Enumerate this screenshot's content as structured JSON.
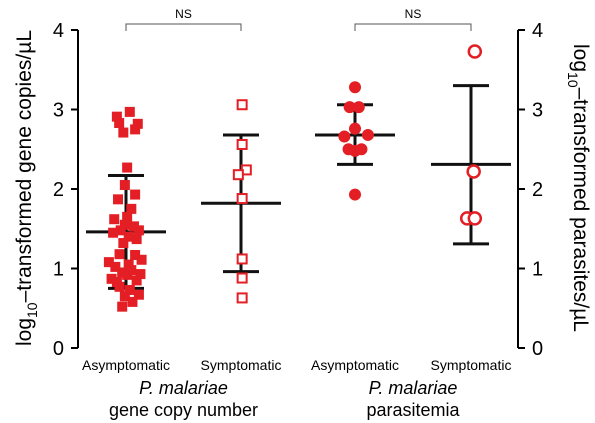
{
  "chart_data": {
    "type": "scatter",
    "title": "",
    "ylabel_left": {
      "prefix": "log",
      "sub": "10",
      "rest": "–transformed gene copies/µL"
    },
    "ylabel_right": {
      "prefix": "log",
      "sub": "10",
      "rest": "–transformed parasites/µL"
    },
    "ylim": [
      0,
      4
    ],
    "yticks": [
      0,
      1,
      2,
      3,
      4
    ],
    "categories": [
      "Asymptomatic",
      "Symptomatic",
      "Asymptomatic",
      "Symptomatic"
    ],
    "groups": [
      {
        "italic": "P. malariae",
        "label": "gene copy number"
      },
      {
        "italic": "P. malariae",
        "label": "parasitemia"
      }
    ],
    "series": [
      {
        "category_index": 0,
        "marker": "square-filled",
        "color": "#e31e24",
        "mean": 1.46,
        "sd_low": 0.75,
        "sd_high": 2.17,
        "points": [
          {
            "dx": -0.24,
            "y": 2.91
          },
          {
            "dx": 0.1,
            "y": 2.97
          },
          {
            "dx": -0.18,
            "y": 2.83
          },
          {
            "dx": 0.31,
            "y": 2.82
          },
          {
            "dx": 0.24,
            "y": 2.75
          },
          {
            "dx": -0.07,
            "y": 2.71
          },
          {
            "dx": 0.03,
            "y": 2.27
          },
          {
            "dx": -0.03,
            "y": 2.05
          },
          {
            "dx": 0.24,
            "y": 1.93
          },
          {
            "dx": -0.21,
            "y": 1.87
          },
          {
            "dx": 0.14,
            "y": 1.75
          },
          {
            "dx": 0.03,
            "y": 1.65
          },
          {
            "dx": -0.31,
            "y": 1.62
          },
          {
            "dx": -0.03,
            "y": 1.55
          },
          {
            "dx": 0.21,
            "y": 1.53
          },
          {
            "dx": -0.14,
            "y": 1.48
          },
          {
            "dx": 0.34,
            "y": 1.48
          },
          {
            "dx": -0.34,
            "y": 1.45
          },
          {
            "dx": 0.07,
            "y": 1.4
          },
          {
            "dx": 0.28,
            "y": 1.37
          },
          {
            "dx": -0.07,
            "y": 1.32
          },
          {
            "dx": -0.17,
            "y": 1.18
          },
          {
            "dx": 0.24,
            "y": 1.17
          },
          {
            "dx": 0.41,
            "y": 1.11
          },
          {
            "dx": -0.45,
            "y": 1.08
          },
          {
            "dx": 0.07,
            "y": 1.05
          },
          {
            "dx": -0.28,
            "y": 1.02
          },
          {
            "dx": 0.14,
            "y": 0.98
          },
          {
            "dx": -0.1,
            "y": 0.95
          },
          {
            "dx": 0.38,
            "y": 0.93
          },
          {
            "dx": 0.03,
            "y": 0.92
          },
          {
            "dx": -0.38,
            "y": 0.87
          },
          {
            "dx": 0.28,
            "y": 0.85
          },
          {
            "dx": -0.24,
            "y": 0.83
          },
          {
            "dx": -0.17,
            "y": 0.77
          },
          {
            "dx": 0.1,
            "y": 0.73
          },
          {
            "dx": 0.34,
            "y": 0.67
          },
          {
            "dx": -0.03,
            "y": 0.65
          },
          {
            "dx": 0.17,
            "y": 0.58
          },
          {
            "dx": -0.1,
            "y": 0.52
          }
        ]
      },
      {
        "category_index": 1,
        "marker": "square-open",
        "color": "#e31e24",
        "mean": 1.82,
        "sd_low": 0.96,
        "sd_high": 2.68,
        "points": [
          {
            "dx": 0.03,
            "y": 3.06
          },
          {
            "dx": 0.03,
            "y": 2.56
          },
          {
            "dx": 0.14,
            "y": 2.24
          },
          {
            "dx": -0.07,
            "y": 2.18
          },
          {
            "dx": 0.03,
            "y": 1.88
          },
          {
            "dx": 0.03,
            "y": 1.12
          },
          {
            "dx": 0.03,
            "y": 0.88
          },
          {
            "dx": 0.03,
            "y": 0.63
          }
        ]
      },
      {
        "category_index": 2,
        "marker": "circle-filled",
        "color": "#e31e24",
        "mean": 2.68,
        "sd_low": 2.31,
        "sd_high": 3.06,
        "points": [
          {
            "dx": 0.0,
            "y": 3.28
          },
          {
            "dx": -0.14,
            "y": 3.03
          },
          {
            "dx": 0.1,
            "y": 3.03
          },
          {
            "dx": 0.0,
            "y": 2.76
          },
          {
            "dx": -0.28,
            "y": 2.66
          },
          {
            "dx": 0.34,
            "y": 2.68
          },
          {
            "dx": -0.17,
            "y": 2.5
          },
          {
            "dx": 0.0,
            "y": 2.48
          },
          {
            "dx": 0.17,
            "y": 2.5
          },
          {
            "dx": 0.0,
            "y": 1.93
          }
        ]
      },
      {
        "category_index": 3,
        "marker": "circle-open",
        "color": "#e31e24",
        "mean": 2.31,
        "sd_low": 1.31,
        "sd_high": 3.3,
        "points": [
          {
            "dx": 0.1,
            "y": 3.73
          },
          {
            "dx": 0.07,
            "y": 2.22
          },
          {
            "dx": -0.1,
            "y": 1.63
          },
          {
            "dx": 0.1,
            "y": 1.63
          }
        ]
      }
    ],
    "annotations": [
      {
        "text": "NS",
        "from_category": 0,
        "to_category": 1
      },
      {
        "text": "NS",
        "from_category": 2,
        "to_category": 3
      }
    ],
    "grid": false,
    "legend": "none"
  }
}
